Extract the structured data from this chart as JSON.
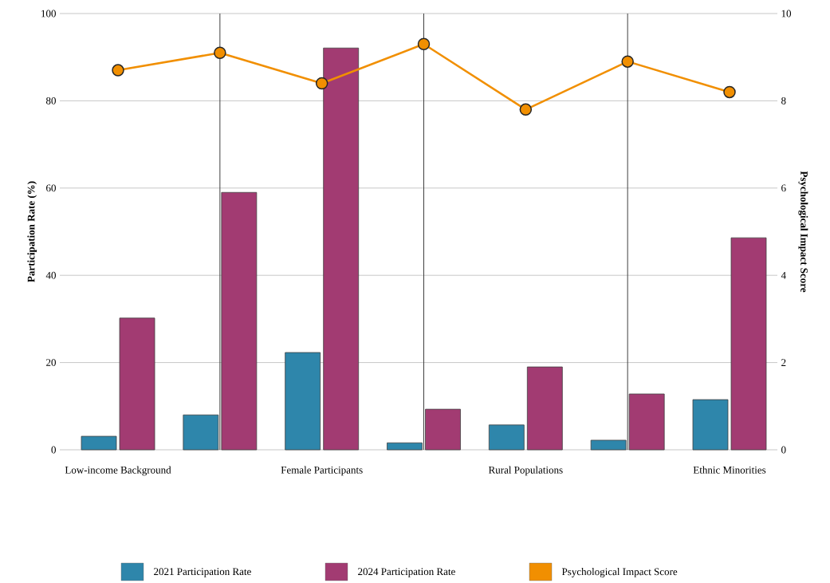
{
  "chart_data": {
    "type": "bar",
    "categories": [
      "Low-income Background",
      null,
      "Female Participants",
      null,
      "Rural Populations",
      null,
      "Ethnic Minorities"
    ],
    "series": [
      {
        "name": "2021 Participation Rate",
        "color": "#2e86ab",
        "values": [
          3.1,
          8.0,
          22.3,
          1.6,
          5.7,
          2.2,
          11.5
        ]
      },
      {
        "name": "2024 Participation Rate",
        "color": "#a23b72",
        "values": [
          30.2,
          59.0,
          92.1,
          9.3,
          19.0,
          12.8,
          48.6
        ]
      },
      {
        "name": "Psychological Impact Score",
        "type": "line",
        "axis": "y2",
        "color": "#f18f01",
        "marker": "circle",
        "values": [
          8.7,
          9.1,
          8.4,
          9.3,
          7.8,
          8.9,
          8.2
        ]
      }
    ],
    "ylabel": "Participation Rate (%)",
    "y2label": "Psychological Impact Score",
    "ylim": [
      0,
      100
    ],
    "yticks": [
      0,
      20,
      40,
      60,
      80,
      100
    ],
    "y2lim": [
      0,
      10
    ],
    "y2ticks": [
      0,
      2,
      4,
      6,
      8,
      10
    ],
    "grid": true,
    "legend": "bottom"
  }
}
